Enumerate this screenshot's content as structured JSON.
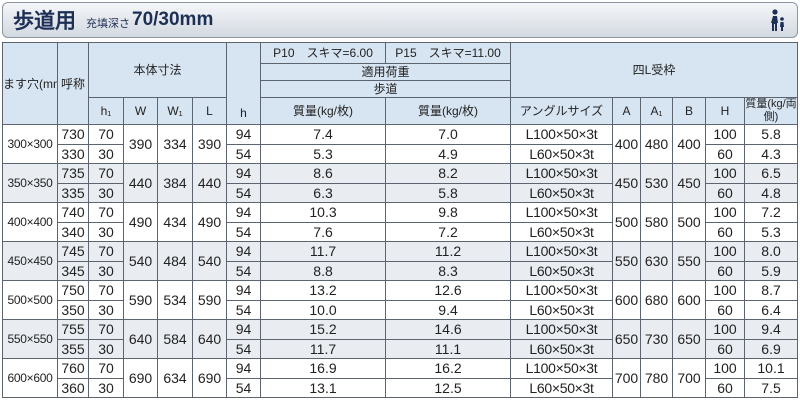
{
  "header": {
    "title": "歩道用",
    "depth_label": "充填深さ",
    "depth_value": "70/30mm"
  },
  "table": {
    "columns": {
      "hole": "ます穴(mm)",
      "call": "呼称",
      "body": "本体寸法",
      "h1": "h₁",
      "W": "W",
      "W1": "W₁",
      "L": "L",
      "h": "h",
      "p10": "P10　スキマ=6.00",
      "p15": "P15　スキマ=11.00",
      "load": "適用荷重",
      "walk": "歩道",
      "mass_p10": "質量(kg/枚)",
      "mass_p15": "質量(kg/枚)",
      "frame": "四L受枠",
      "angle": "アングルサイズ",
      "A": "A",
      "A1": "A₁",
      "B": "B",
      "H": "H",
      "mass": "質量(kg/両側)"
    },
    "groups": [
      {
        "size": "300×300",
        "call": [
          "730",
          "330"
        ],
        "h1": [
          "70",
          "30"
        ],
        "W": "390",
        "W1": "334",
        "L": "390",
        "h": [
          "94",
          "54"
        ],
        "mass_p10": [
          "7.4",
          "5.3"
        ],
        "mass_p15": [
          "7.0",
          "4.9"
        ],
        "angle": [
          "L100×50×3t",
          "L60×50×3t"
        ],
        "A": "400",
        "A1": "480",
        "B": "400",
        "H": [
          "100",
          "60"
        ],
        "mass": [
          "5.8",
          "4.3"
        ]
      },
      {
        "size": "350×350",
        "call": [
          "735",
          "335"
        ],
        "h1": [
          "70",
          "30"
        ],
        "W": "440",
        "W1": "384",
        "L": "440",
        "h": [
          "94",
          "54"
        ],
        "mass_p10": [
          "8.6",
          "6.3"
        ],
        "mass_p15": [
          "8.2",
          "5.8"
        ],
        "angle": [
          "L100×50×3t",
          "L60×50×3t"
        ],
        "A": "450",
        "A1": "530",
        "B": "450",
        "H": [
          "100",
          "60"
        ],
        "mass": [
          "6.5",
          "4.8"
        ]
      },
      {
        "size": "400×400",
        "call": [
          "740",
          "340"
        ],
        "h1": [
          "70",
          "30"
        ],
        "W": "490",
        "W1": "434",
        "L": "490",
        "h": [
          "94",
          "54"
        ],
        "mass_p10": [
          "10.3",
          "7.6"
        ],
        "mass_p15": [
          "9.8",
          "7.2"
        ],
        "angle": [
          "L100×50×3t",
          "L60×50×3t"
        ],
        "A": "500",
        "A1": "580",
        "B": "500",
        "H": [
          "100",
          "60"
        ],
        "mass": [
          "7.2",
          "5.3"
        ]
      },
      {
        "size": "450×450",
        "call": [
          "745",
          "345"
        ],
        "h1": [
          "70",
          "30"
        ],
        "W": "540",
        "W1": "484",
        "L": "540",
        "h": [
          "94",
          "54"
        ],
        "mass_p10": [
          "11.7",
          "8.8"
        ],
        "mass_p15": [
          "11.2",
          "8.3"
        ],
        "angle": [
          "L100×50×3t",
          "L60×50×3t"
        ],
        "A": "550",
        "A1": "630",
        "B": "550",
        "H": [
          "100",
          "60"
        ],
        "mass": [
          "8.0",
          "5.9"
        ]
      },
      {
        "size": "500×500",
        "call": [
          "750",
          "350"
        ],
        "h1": [
          "70",
          "30"
        ],
        "W": "590",
        "W1": "534",
        "L": "590",
        "h": [
          "94",
          "54"
        ],
        "mass_p10": [
          "13.2",
          "10.0"
        ],
        "mass_p15": [
          "12.6",
          "9.4"
        ],
        "angle": [
          "L100×50×3t",
          "L60×50×3t"
        ],
        "A": "600",
        "A1": "680",
        "B": "600",
        "H": [
          "100",
          "60"
        ],
        "mass": [
          "8.7",
          "6.4"
        ]
      },
      {
        "size": "550×550",
        "call": [
          "755",
          "355"
        ],
        "h1": [
          "70",
          "30"
        ],
        "W": "640",
        "W1": "584",
        "L": "640",
        "h": [
          "94",
          "54"
        ],
        "mass_p10": [
          "15.2",
          "11.7"
        ],
        "mass_p15": [
          "14.6",
          "11.1"
        ],
        "angle": [
          "L100×50×3t",
          "L60×50×3t"
        ],
        "A": "650",
        "A1": "730",
        "B": "650",
        "H": [
          "100",
          "60"
        ],
        "mass": [
          "9.4",
          "6.9"
        ]
      },
      {
        "size": "600×600",
        "call": [
          "760",
          "360"
        ],
        "h1": [
          "70",
          "30"
        ],
        "W": "690",
        "W1": "634",
        "L": "690",
        "h": [
          "94",
          "54"
        ],
        "mass_p10": [
          "16.9",
          "13.1"
        ],
        "mass_p15": [
          "16.2",
          "12.5"
        ],
        "angle": [
          "L100×50×3t",
          "L60×50×3t"
        ],
        "A": "700",
        "A1": "780",
        "B": "700",
        "H": [
          "100",
          "60"
        ],
        "mass": [
          "10.1",
          "7.5"
        ]
      }
    ]
  }
}
